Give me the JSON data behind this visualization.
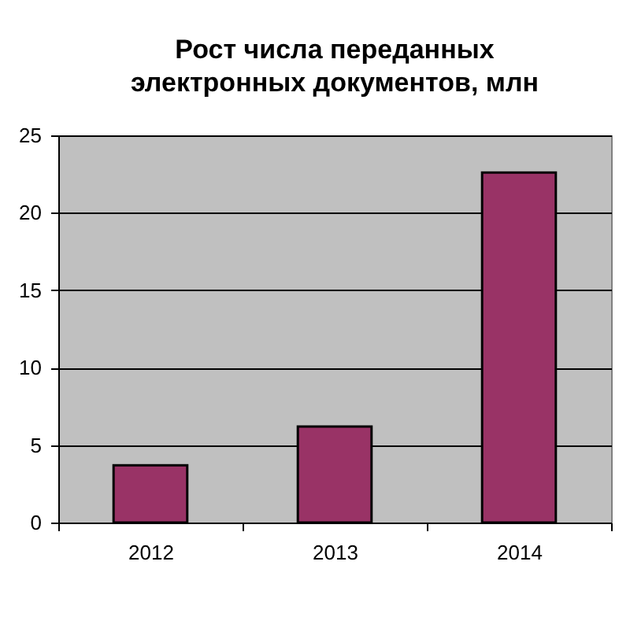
{
  "chart_data": {
    "type": "bar",
    "title": "Рост числа переданных\nэлектронных документов, млн",
    "categories": [
      "2012",
      "2013",
      "2014"
    ],
    "values": [
      3.7,
      6.2,
      22.6
    ],
    "color": "#993366",
    "ylim": [
      0,
      25
    ],
    "yticks": [
      0,
      5,
      10,
      15,
      20,
      25
    ],
    "grid": "y"
  }
}
